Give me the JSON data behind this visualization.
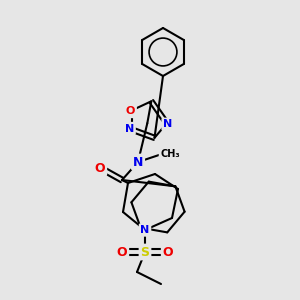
{
  "bg_color": "#e6e6e6",
  "bond_color": "#000000",
  "bond_width": 1.5,
  "atom_colors": {
    "N": "#0000ee",
    "O": "#ee0000",
    "S": "#cccc00",
    "C": "#000000"
  }
}
